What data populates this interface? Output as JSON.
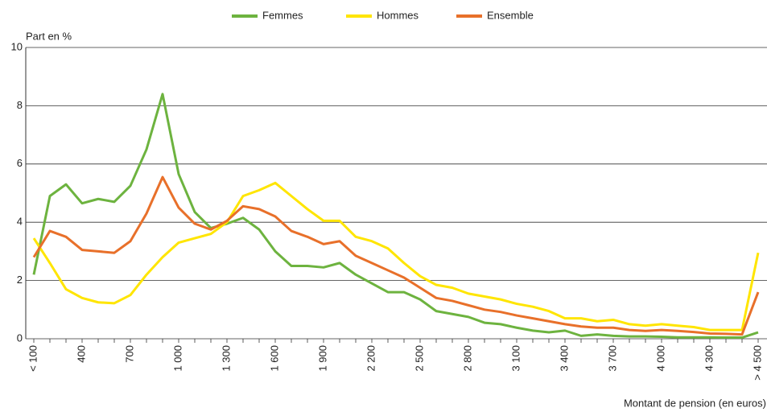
{
  "chart_data": {
    "type": "line",
    "y_label": "Part en %",
    "x_label": "Montant de pension (en euros)",
    "categories": [
      "< 100",
      null,
      null,
      "400",
      null,
      null,
      "700",
      null,
      null,
      "1 000",
      null,
      null,
      "1 300",
      null,
      null,
      "1 600",
      null,
      null,
      "1 900",
      null,
      null,
      "2 200",
      null,
      null,
      "2 500",
      null,
      null,
      "2 800",
      null,
      null,
      "3 100",
      null,
      null,
      "3 400",
      null,
      null,
      "3 700",
      null,
      null,
      "4 000",
      null,
      null,
      "4 300",
      null,
      null,
      "> 4 500"
    ],
    "series": [
      {
        "name": "Femmes",
        "color": "#6db33f",
        "values": [
          2.2,
          4.9,
          5.3,
          4.65,
          4.8,
          4.7,
          5.25,
          6.5,
          8.4,
          5.65,
          4.35,
          3.8,
          3.95,
          4.15,
          3.75,
          3.0,
          2.5,
          2.5,
          2.45,
          2.6,
          2.2,
          1.9,
          1.6,
          1.6,
          1.35,
          0.95,
          0.85,
          0.75,
          0.55,
          0.5,
          0.38,
          0.28,
          0.22,
          0.28,
          0.1,
          0.15,
          0.1,
          0.08,
          0.08,
          0.07,
          0.05,
          0.05,
          0.05,
          0.04,
          0.04,
          0.22
        ]
      },
      {
        "name": "Hommes",
        "color": "#ffe500",
        "values": [
          3.45,
          2.6,
          1.7,
          1.4,
          1.25,
          1.22,
          1.5,
          2.2,
          2.8,
          3.3,
          3.45,
          3.6,
          4.0,
          4.9,
          5.1,
          5.35,
          4.9,
          4.45,
          4.05,
          4.05,
          3.5,
          3.35,
          3.1,
          2.6,
          2.15,
          1.85,
          1.75,
          1.55,
          1.45,
          1.35,
          1.2,
          1.1,
          0.95,
          0.7,
          0.7,
          0.6,
          0.65,
          0.5,
          0.45,
          0.5,
          0.45,
          0.4,
          0.3,
          0.3,
          0.3,
          2.95
        ]
      },
      {
        "name": "Ensemble",
        "color": "#e8702a",
        "values": [
          2.8,
          3.7,
          3.5,
          3.05,
          3.0,
          2.95,
          3.35,
          4.3,
          5.55,
          4.5,
          3.95,
          3.75,
          4.05,
          4.55,
          4.45,
          4.2,
          3.7,
          3.5,
          3.25,
          3.35,
          2.85,
          2.6,
          2.35,
          2.1,
          1.75,
          1.4,
          1.3,
          1.15,
          1.0,
          0.92,
          0.8,
          0.7,
          0.6,
          0.5,
          0.42,
          0.38,
          0.38,
          0.3,
          0.27,
          0.3,
          0.27,
          0.23,
          0.18,
          0.17,
          0.15,
          1.6
        ]
      }
    ],
    "ylim": [
      0,
      10
    ],
    "yticks": [
      0,
      2,
      4,
      6,
      8,
      10
    ],
    "grid": true
  }
}
